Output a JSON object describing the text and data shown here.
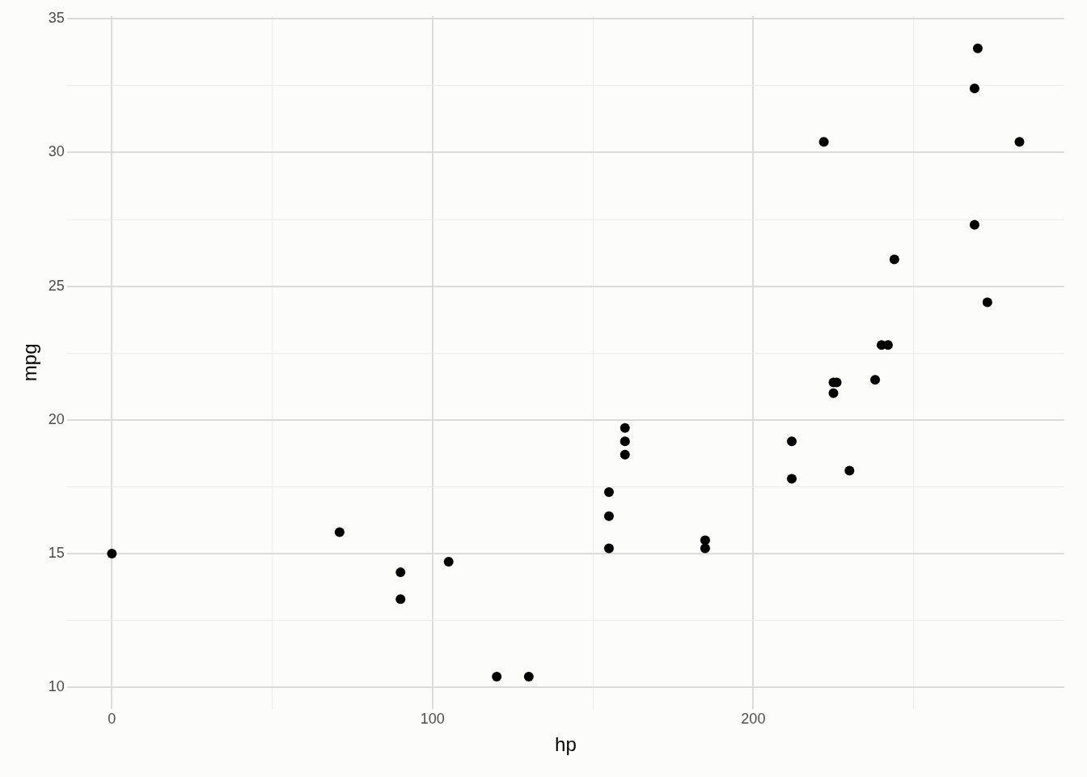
{
  "chart_data": {
    "type": "scatter",
    "xlabel": "hp",
    "ylabel": "mpg",
    "x": [
      0,
      71,
      90,
      90,
      105,
      120,
      130,
      155,
      155,
      155,
      160,
      160,
      160,
      185,
      185,
      212,
      212,
      222,
      225,
      226,
      225,
      230,
      238,
      240,
      242,
      244,
      269,
      270,
      269,
      273,
      283
    ],
    "values": [
      15.0,
      15.8,
      14.3,
      13.3,
      14.7,
      10.4,
      10.4,
      17.3,
      16.4,
      15.2,
      19.7,
      19.2,
      18.7,
      15.5,
      15.2,
      19.2,
      17.8,
      30.4,
      21.4,
      21.4,
      21.0,
      18.1,
      21.5,
      22.8,
      22.8,
      26.0,
      32.4,
      33.9,
      27.3,
      24.4,
      30.4
    ],
    "color": "#000000",
    "marker": "circle",
    "xlim": [
      -14,
      297
    ],
    "ylim": [
      9.2,
      35.1
    ],
    "xticks": [
      0,
      {
        "value": 50,
        "label": null
      },
      100,
      {
        "value": 150,
        "label": null
      },
      200,
      {
        "value": 250,
        "label": null
      }
    ],
    "yticks": [
      10,
      {
        "value": 12.5,
        "label": null
      },
      15,
      {
        "value": 17.5,
        "label": null
      },
      20,
      {
        "value": 22.5,
        "label": null
      },
      25,
      {
        "value": 27.5,
        "label": null
      },
      30,
      {
        "value": 32.5,
        "label": null
      },
      35
    ],
    "grid": true
  }
}
